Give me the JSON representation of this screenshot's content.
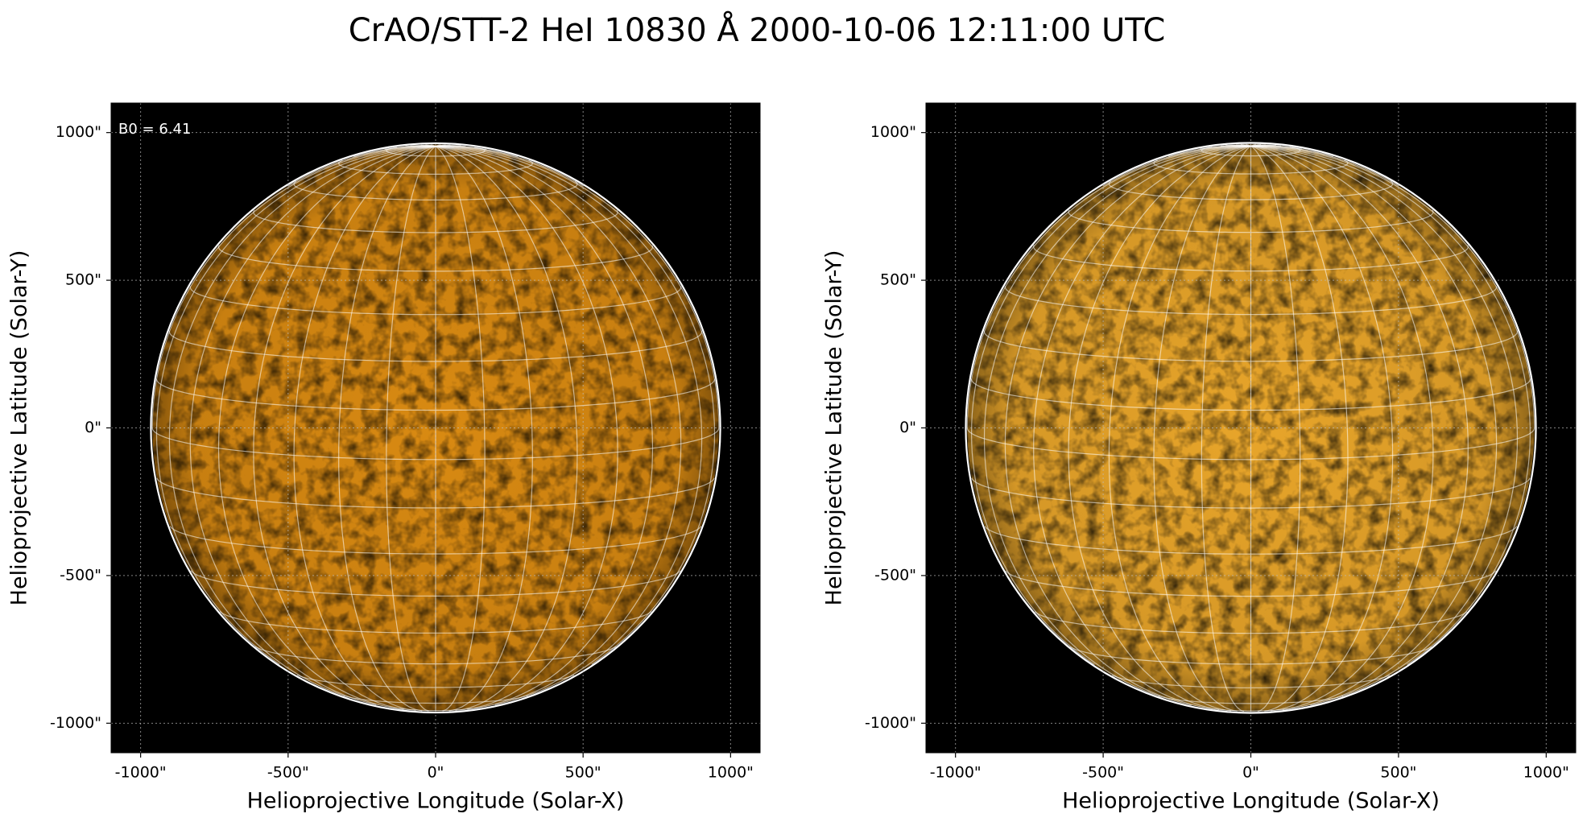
{
  "title": "CrAO/STT-2 HeI 10830 Å 2000-10-06 12:11:00 UTC",
  "chart_data": [
    {
      "type": "image",
      "annotation": "B0 = 6.41",
      "xlabel": "Helioprojective Longitude (Solar-X)",
      "ylabel": "Helioprojective Latitude (Solar-Y)",
      "xlim": [
        -1100,
        1100
      ],
      "ylim": [
        -1100,
        1100
      ],
      "xticks": [
        {
          "value": -1000,
          "label": "-1000\""
        },
        {
          "value": -500,
          "label": "-500\""
        },
        {
          "value": 0,
          "label": "0\""
        },
        {
          "value": 500,
          "label": "500\""
        },
        {
          "value": 1000,
          "label": "1000\""
        }
      ],
      "yticks": [
        {
          "value": -1000,
          "label": "-1000\""
        },
        {
          "value": -500,
          "label": "-500\""
        },
        {
          "value": 0,
          "label": "0\""
        },
        {
          "value": 500,
          "label": "500\""
        },
        {
          "value": 1000,
          "label": "1000\""
        }
      ],
      "grid": true,
      "color": "#d98a12"
    },
    {
      "type": "image",
      "xlabel": "Helioprojective Longitude (Solar-X)",
      "ylabel": "Helioprojective Latitude (Solar-Y)",
      "xlim": [
        -1100,
        1100
      ],
      "ylim": [
        -1100,
        1100
      ],
      "xticks": [
        {
          "value": -1000,
          "label": "-1000\""
        },
        {
          "value": -500,
          "label": "-500\""
        },
        {
          "value": 0,
          "label": "0\""
        },
        {
          "value": 500,
          "label": "500\""
        },
        {
          "value": 1000,
          "label": "1000\""
        }
      ],
      "yticks": [
        {
          "value": -1000,
          "label": "-1000\""
        },
        {
          "value": -500,
          "label": "-500\""
        },
        {
          "value": 0,
          "label": "0\""
        },
        {
          "value": 500,
          "label": "500\""
        },
        {
          "value": 1000,
          "label": "1000\""
        }
      ],
      "grid": true,
      "color": "#e8a52a"
    }
  ]
}
